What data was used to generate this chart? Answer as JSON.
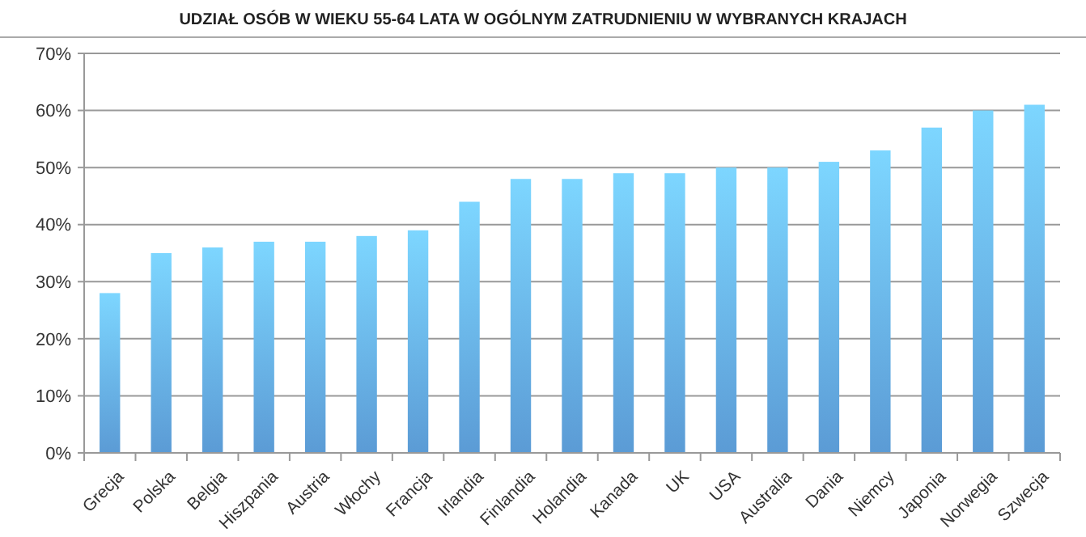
{
  "chart_data": {
    "type": "bar",
    "title": "UDZIAŁ OSÓB W WIEKU 55-64 LATA W OGÓLNYM ZATRUDNIENIU W WYBRANYCH KRAJACH",
    "categories": [
      "Grecja",
      "Polska",
      "Belgia",
      "Hiszpania",
      "Austria",
      "Włochy",
      "Francja",
      "Irlandia",
      "Finlandia",
      "Holandia",
      "Kanada",
      "UK",
      "USA",
      "Australia",
      "Dania",
      "Niemcy",
      "Japonia",
      "Norwegia",
      "Szwecja"
    ],
    "values": [
      28,
      35,
      36,
      37,
      37,
      38,
      39,
      44,
      48,
      48,
      49,
      49,
      50,
      50,
      51,
      53,
      57,
      60,
      61
    ],
    "color": "#5b9bd5",
    "ylim": [
      0,
      70
    ],
    "yticks": [
      {
        "value": 0,
        "label": "0%"
      },
      {
        "value": 10,
        "label": "10%"
      },
      {
        "value": 20,
        "label": "20%"
      },
      {
        "value": 30,
        "label": "30%"
      },
      {
        "value": 40,
        "label": "40%"
      },
      {
        "value": 50,
        "label": "50%"
      },
      {
        "value": 60,
        "label": "60%"
      },
      {
        "value": 70,
        "label": "70%"
      }
    ],
    "grid": "y"
  }
}
